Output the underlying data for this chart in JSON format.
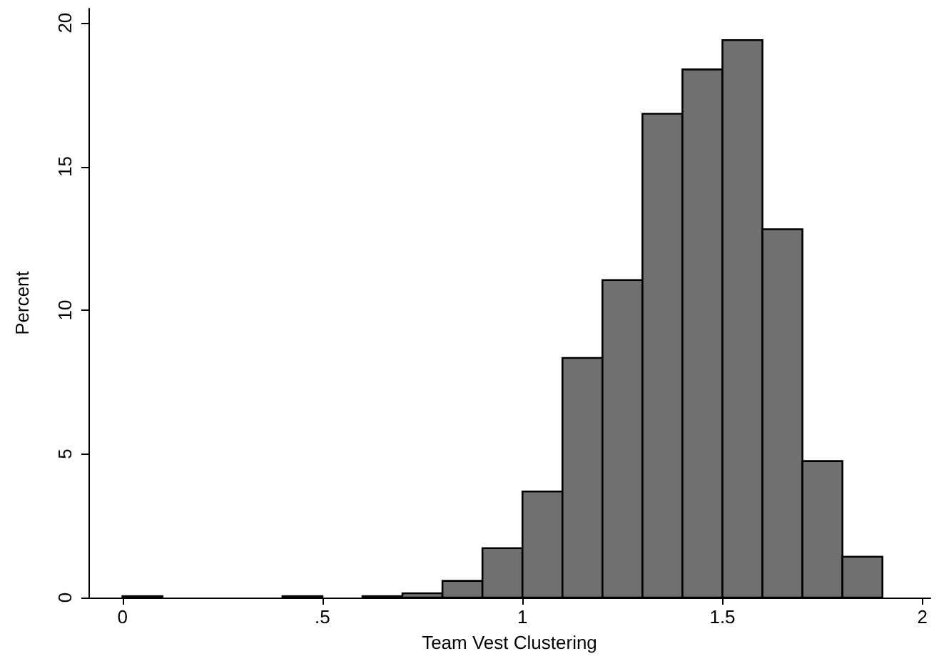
{
  "chart_data": {
    "type": "histogram",
    "xlabel": "Team Vest Clustering",
    "ylabel": "Percent",
    "bins": [
      0,
      0.1,
      0.2,
      0.3,
      0.4,
      0.5,
      0.6,
      0.7,
      0.8,
      0.9,
      1.0,
      1.1,
      1.2,
      1.3,
      1.4,
      1.5,
      1.6,
      1.7,
      1.8,
      1.9
    ],
    "values": [
      0.05,
      0,
      0,
      0,
      0.05,
      0,
      0.05,
      0.15,
      0.58,
      1.72,
      3.69,
      8.34,
      11.05,
      16.84,
      18.38,
      19.4,
      12.82,
      4.75,
      1.42
    ],
    "color": "#707070",
    "xlim": [
      -0.085,
      2.02
    ],
    "xticks": [
      0,
      {
        "value": 0.5,
        "label": ".5"
      },
      1,
      1.5,
      2
    ],
    "ylim": [
      0,
      20.5
    ],
    "yticks": [
      0,
      5,
      10,
      15,
      20
    ],
    "grid": false
  }
}
